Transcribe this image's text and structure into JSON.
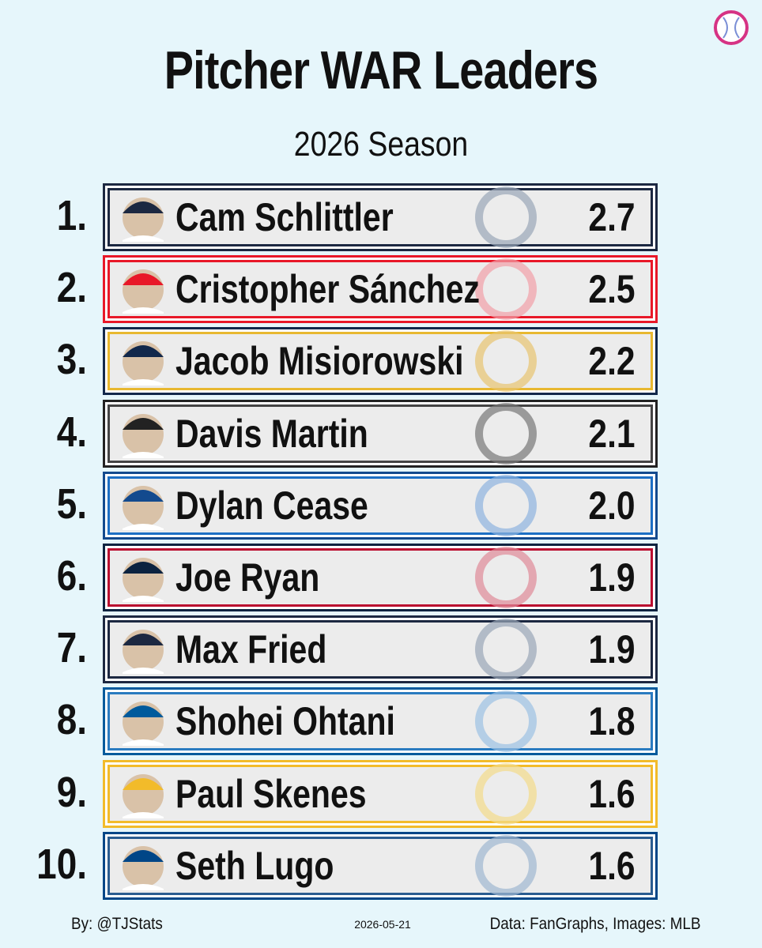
{
  "header": {
    "title": "Pitcher WAR Leaders",
    "subtitle": "2026 Season"
  },
  "rows": [
    {
      "rank": "1.",
      "name": "Cam Schlittler",
      "war": "2.7"
    },
    {
      "rank": "2.",
      "name": "Cristopher Sánchez",
      "war": "2.5"
    },
    {
      "rank": "3.",
      "name": "Jacob Misiorowski",
      "war": "2.2"
    },
    {
      "rank": "4.",
      "name": "Davis Martin",
      "war": "2.1"
    },
    {
      "rank": "5.",
      "name": "Dylan Cease",
      "war": "2.0"
    },
    {
      "rank": "6.",
      "name": "Joe Ryan",
      "war": "1.9"
    },
    {
      "rank": "7.",
      "name": "Max Fried",
      "war": "1.9"
    },
    {
      "rank": "8.",
      "name": "Shohei Ohtani",
      "war": "1.8"
    },
    {
      "rank": "9.",
      "name": "Paul Skenes",
      "war": "1.6"
    },
    {
      "rank": "10.",
      "name": "Seth Lugo",
      "war": "1.6"
    }
  ],
  "footer": {
    "author": "By: @TJStats",
    "date": "2026-05-21",
    "source": "Data: FanGraphs, Images: MLB"
  }
}
